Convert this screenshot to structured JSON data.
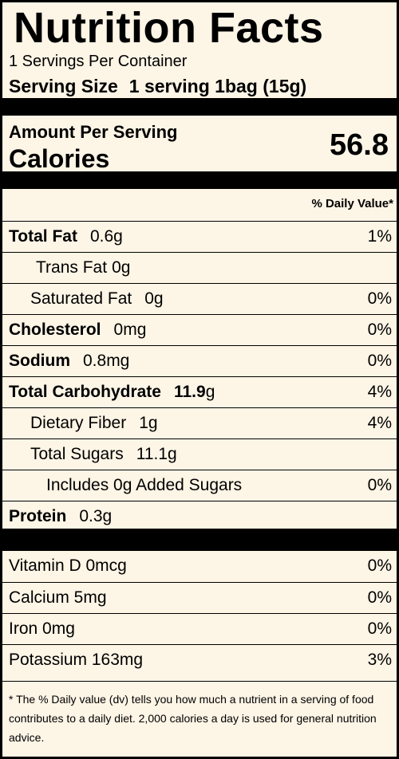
{
  "label": {
    "title": "Nutrition Facts",
    "servings_per_container": "1 Servings Per Container",
    "serving_size_label": "Serving Size",
    "serving_size_value": "1 serving 1bag (15g)",
    "amount_per_serving": "Amount Per Serving",
    "calories_label": "Calories",
    "calories_value": "56.8",
    "daily_value_header": "% Daily Value*",
    "nutrients": [
      {
        "name": "Total Fat",
        "amount": "0.6g",
        "dv": "1%"
      },
      {
        "name": "Trans Fat",
        "amount": "0g",
        "dv": ""
      },
      {
        "name": "Saturated Fat",
        "amount": "0g",
        "dv": "0%"
      },
      {
        "name": "Cholesterol",
        "amount": "0mg",
        "dv": "0%"
      },
      {
        "name": "Sodium",
        "amount": "0.8mg",
        "dv": "0%"
      },
      {
        "name": "Total Carbohydrate",
        "amount_bold": "11.9",
        "amount_unit": "g",
        "dv": "4%"
      },
      {
        "name": "Dietary Fiber",
        "amount": "1g",
        "dv": "4%"
      },
      {
        "name": "Total Sugars",
        "amount": "11.1g",
        "dv": ""
      },
      {
        "name": "Includes 0g Added Sugars",
        "amount": "",
        "dv": "0%"
      },
      {
        "name": "Protein",
        "amount": "0.3g",
        "dv": ""
      }
    ],
    "vitamins": [
      {
        "name": "Vitamin D 0mcg",
        "dv": "0%"
      },
      {
        "name": "Calcium 5mg",
        "dv": "0%"
      },
      {
        "name": "Iron 0mg",
        "dv": "0%"
      },
      {
        "name": "Potassium 163mg",
        "dv": "3%"
      }
    ],
    "footnote": "* The % Daily value (dv) tells you how much a nutrient in a serving of food contributes to a daily diet. 2,000 calories a day is used for general nutrition advice."
  }
}
